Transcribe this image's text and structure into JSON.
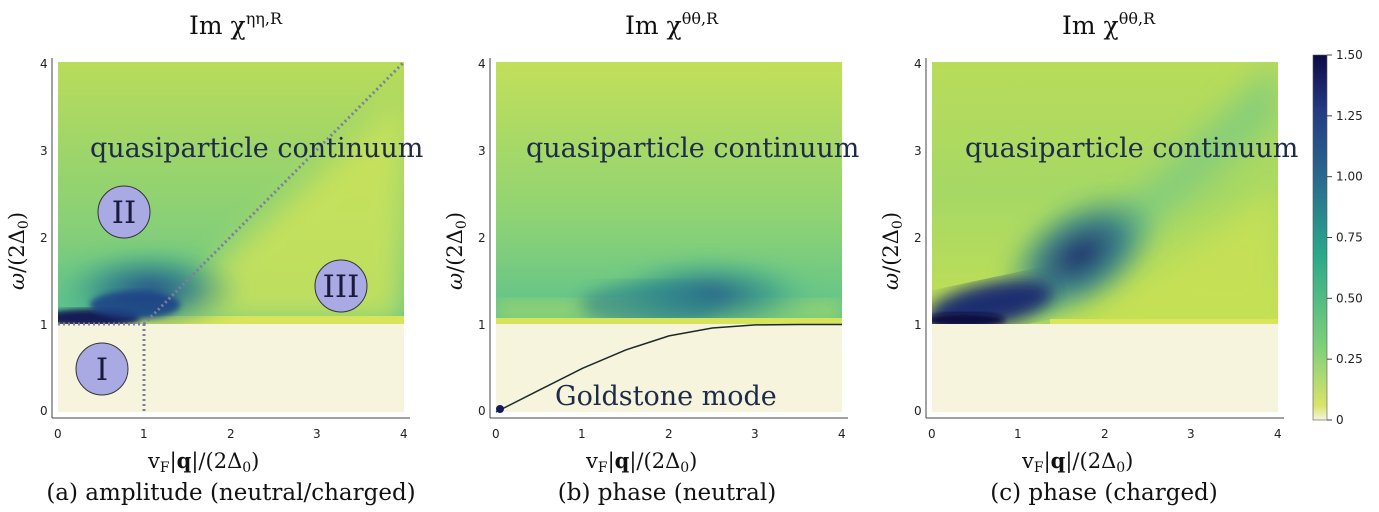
{
  "panels": [
    {
      "title_main": "Im χ",
      "title_sup": "ηη,R",
      "caption": "(a) amplitude (neutral/charged)",
      "annotation": "quasiparticle continuum",
      "regions": [
        "I",
        "II",
        "III"
      ],
      "xlabel": "v_F|q|/(2Δ0)",
      "ylabel": "ω/(2Δ0)"
    },
    {
      "title_main": "Im χ",
      "title_sup": "θθ,R",
      "caption": "(b) phase (neutral)",
      "annotation": "quasiparticle continuum",
      "annotation2": "Goldstone mode",
      "xlabel": "v_F|q|/(2Δ0)",
      "ylabel": "ω/(2Δ0)"
    },
    {
      "title_main": "Im χ",
      "title_sup": "θθ,R",
      "caption": "(c) phase (charged)",
      "annotation": "quasiparticle continuum",
      "xlabel": "v_F|q|/(2Δ0)",
      "ylabel": "ω/(2Δ0)"
    }
  ],
  "colors": {
    "low": "#f6f4dc",
    "mid": "#7fd07a",
    "high": "#0d0a45"
  },
  "chart_data": [
    {
      "type": "heatmap",
      "title": "Im χ^{ηη,R}",
      "xlabel": "v_F|q|/(2Δ0)",
      "ylabel": "ω/(2Δ0)",
      "xlim": [
        0,
        4
      ],
      "ylim": [
        0,
        4
      ],
      "xticks": [
        0,
        1,
        2,
        3,
        4
      ],
      "yticks": [
        0,
        1,
        2,
        3,
        4
      ],
      "guides": [
        [
          [
            0,
            1
          ],
          [
            1,
            1
          ]
        ],
        [
          [
            1,
            0
          ],
          [
            1,
            1
          ]
        ],
        [
          [
            1,
            1
          ],
          [
            4,
            4
          ]
        ]
      ],
      "regions": [
        {
          "label": "I",
          "x": 0.5,
          "y": 0.45
        },
        {
          "label": "II",
          "x": 0.75,
          "y": 2.3
        },
        {
          "label": "III",
          "x": 3.3,
          "y": 1.45
        }
      ]
    },
    {
      "type": "heatmap",
      "title": "Im χ^{θθ,R}",
      "xlabel": "v_F|q|/(2Δ0)",
      "ylabel": "ω/(2Δ0)",
      "xlim": [
        0,
        4
      ],
      "ylim": [
        0,
        4
      ],
      "xticks": [
        0,
        1,
        2,
        3,
        4
      ],
      "yticks": [
        0,
        1,
        2,
        3,
        4
      ],
      "goldstone_mode": [
        [
          0,
          0
        ],
        [
          0.5,
          0.25
        ],
        [
          1,
          0.5
        ],
        [
          1.5,
          0.71
        ],
        [
          2,
          0.87
        ],
        [
          2.5,
          0.96
        ],
        [
          3,
          0.995
        ],
        [
          3.5,
          1.0
        ],
        [
          4,
          1.0
        ]
      ]
    },
    {
      "type": "heatmap",
      "title": "Im χ^{θθ,R}",
      "xlabel": "v_F|q|/(2Δ0)",
      "ylabel": "ω/(2Δ0)",
      "xlim": [
        0,
        4
      ],
      "ylim": [
        0,
        4
      ],
      "xticks": [
        0,
        1,
        2,
        3,
        4
      ],
      "yticks": [
        0,
        1,
        2,
        3,
        4
      ]
    }
  ],
  "colorbar": {
    "min": 0,
    "max": 1.5,
    "ticks": [
      "0",
      "0.25",
      "0.50",
      "0.75",
      "1.00",
      "1.25",
      "1.50"
    ]
  }
}
